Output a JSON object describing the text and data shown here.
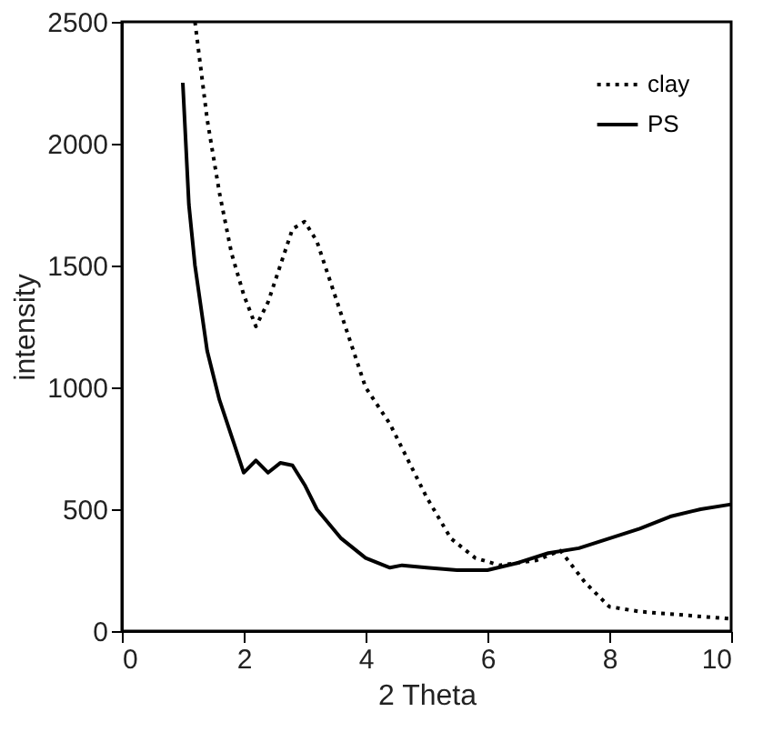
{
  "chart_data": {
    "type": "line",
    "xlabel": "2 Theta",
    "ylabel": "intensity",
    "xlim": [
      0,
      10
    ],
    "xticks": [
      0,
      2,
      4,
      6,
      8,
      10
    ],
    "ylim": [
      0,
      2500
    ],
    "yticks": [
      0,
      500,
      1000,
      1500,
      2000,
      2500
    ],
    "grid": false,
    "legend": "top right",
    "marker": "none",
    "series": [
      {
        "name": "clay",
        "color": "#000000",
        "line_style": "dotted",
        "x": [
          1.2,
          1.4,
          1.6,
          1.8,
          2.0,
          2.2,
          2.4,
          2.6,
          2.8,
          3.0,
          3.2,
          3.4,
          3.6,
          3.8,
          4.0,
          4.4,
          4.8,
          5.0,
          5.4,
          5.8,
          6.2,
          6.8,
          7.2,
          7.6,
          8.0,
          8.5,
          9.0,
          10.0
        ],
        "values": [
          2500,
          2100,
          1800,
          1550,
          1380,
          1250,
          1350,
          1500,
          1650,
          1680,
          1600,
          1450,
          1300,
          1150,
          1000,
          850,
          650,
          550,
          380,
          300,
          270,
          290,
          330,
          200,
          100,
          80,
          70,
          50
        ]
      },
      {
        "name": "PS",
        "color": "#000000",
        "line_style": "solid",
        "x": [
          1.0,
          1.1,
          1.2,
          1.4,
          1.6,
          1.8,
          2.0,
          2.2,
          2.4,
          2.6,
          2.8,
          3.0,
          3.2,
          3.6,
          4.0,
          4.4,
          4.6,
          5.0,
          5.5,
          6.0,
          6.5,
          7.0,
          7.5,
          8.0,
          8.5,
          9.0,
          9.5,
          10.0
        ],
        "values": [
          2250,
          1750,
          1500,
          1150,
          950,
          800,
          650,
          700,
          650,
          690,
          680,
          600,
          500,
          380,
          300,
          260,
          270,
          260,
          250,
          250,
          280,
          320,
          340,
          380,
          420,
          470,
          500,
          520
        ]
      }
    ]
  }
}
